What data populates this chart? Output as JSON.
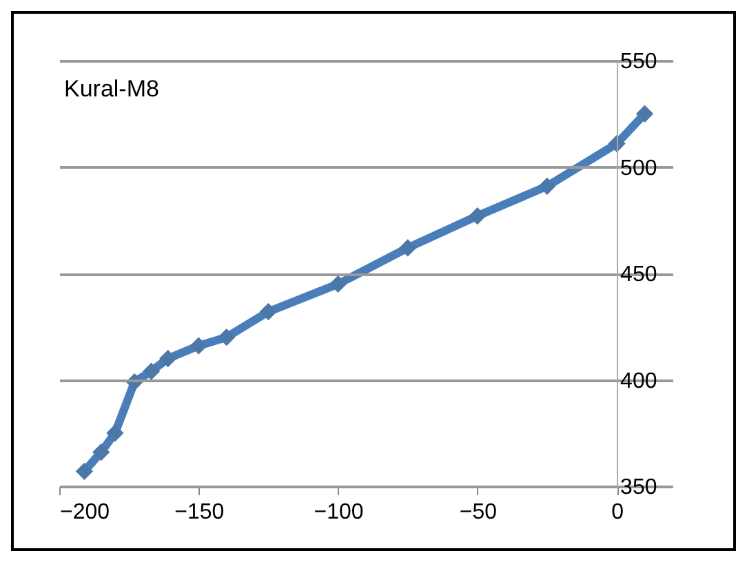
{
  "chart_data": {
    "type": "line",
    "title": "Kural-M8",
    "x": [
      -191,
      -185,
      -180,
      -173,
      -167,
      -161,
      -150,
      -140,
      -125,
      -100,
      -75,
      -50,
      -25,
      0,
      10
    ],
    "series": [
      {
        "color": "#4a7ebb",
        "values": [
          357,
          366,
          375,
          399,
          404,
          410,
          416,
          420,
          432,
          445,
          462,
          477,
          491,
          511,
          525
        ]
      }
    ],
    "xlim": [
      -200,
      20
    ],
    "xticks": [
      -200,
      -150,
      -100,
      -50,
      0
    ],
    "ylim": [
      350,
      550
    ],
    "yticks": [
      350,
      400,
      450,
      500,
      550
    ],
    "grid": "y",
    "marker": "diamond",
    "line_style": "solid"
  }
}
